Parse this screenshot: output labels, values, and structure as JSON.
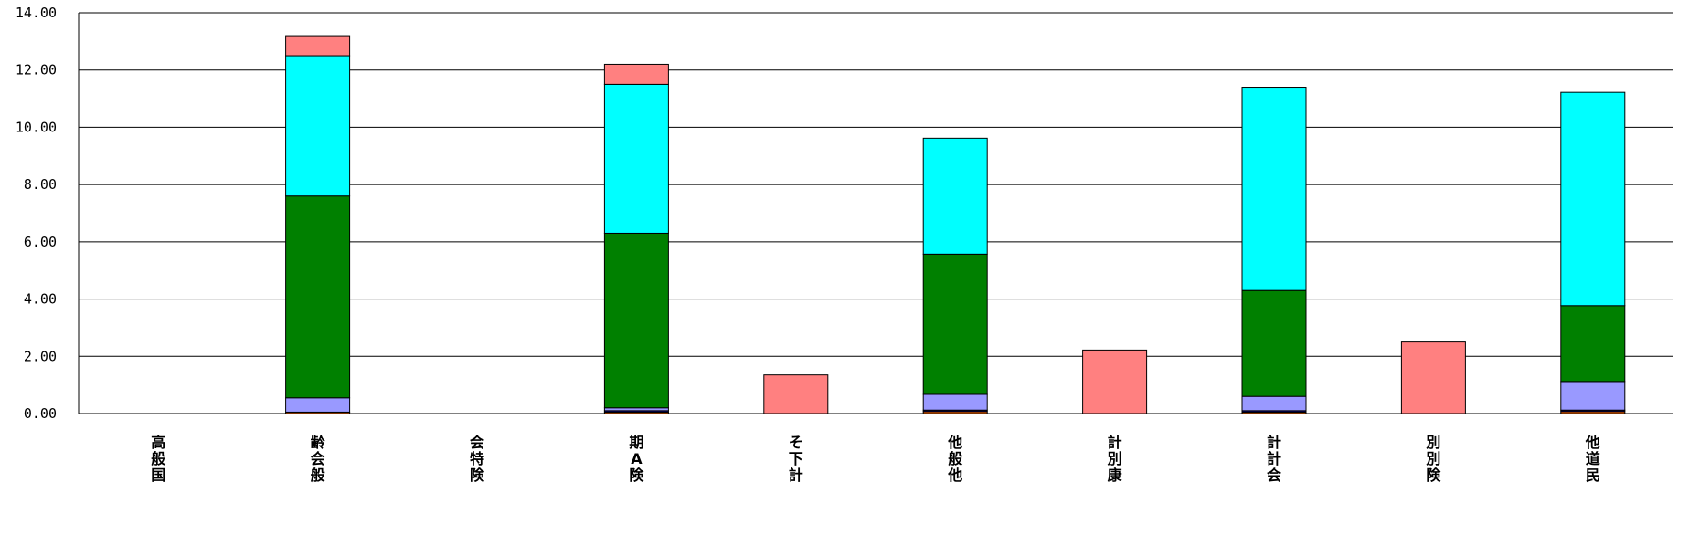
{
  "chart_data": {
    "type": "bar",
    "stacked": true,
    "categories": [
      "高般国",
      "齢会般",
      "会特険",
      "期A険",
      "そ下計",
      "他般他",
      "計別康",
      "計計会",
      "別別険",
      "他道民"
    ],
    "series": [
      {
        "color": "#ff6600",
        "values": [
          0,
          0.05,
          0,
          0.05,
          0,
          0.07,
          0,
          0.05,
          0,
          0.07
        ]
      },
      {
        "color": "#000080",
        "values": [
          0,
          0,
          0,
          0.05,
          0,
          0.05,
          0,
          0.05,
          0,
          0.05
        ]
      },
      {
        "color": "#9999ff",
        "values": [
          0,
          0.5,
          0,
          0.1,
          0,
          0.55,
          0,
          0.5,
          0,
          1.0
        ]
      },
      {
        "color": "#008000",
        "values": [
          0,
          7.05,
          0,
          6.1,
          0,
          4.9,
          0,
          3.7,
          0,
          2.65
        ]
      },
      {
        "color": "#00ffff",
        "values": [
          0,
          4.9,
          0,
          5.2,
          0,
          4.05,
          0,
          7.1,
          0,
          7.45
        ]
      },
      {
        "color": "#ff8080",
        "values": [
          0,
          0.7,
          0,
          0.7,
          1.35,
          0,
          2.22,
          0,
          2.5,
          0
        ]
      }
    ],
    "ylim": [
      0,
      14
    ],
    "ytick_step": 2,
    "ytick_labels": [
      "0.00",
      "2.00",
      "4.00",
      "6.00",
      "8.00",
      "10.00",
      "12.00",
      "14.00"
    ],
    "grid": true,
    "title": "",
    "xlabel": "",
    "ylabel": ""
  }
}
